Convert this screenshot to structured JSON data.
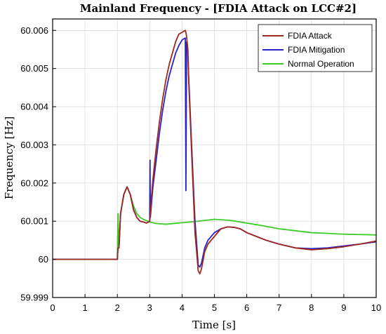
{
  "chart_data": {
    "type": "line",
    "title": "Mainland Frequency - [FDIA Attack on LCC#2]",
    "xlabel": "Time [s]",
    "ylabel": "Frequency [Hz]",
    "xlim": [
      0,
      10
    ],
    "ylim": [
      59.999,
      60.0063
    ],
    "x_ticks": [
      0,
      1,
      2,
      3,
      4,
      5,
      6,
      7,
      8,
      9,
      10
    ],
    "x_tick_labels": [
      "0",
      "1",
      "2",
      "3",
      "4",
      "5",
      "6",
      "7",
      "8",
      "9",
      "10"
    ],
    "y_ticks": [
      59.999,
      60.0,
      60.001,
      60.002,
      60.003,
      60.004,
      60.005,
      60.006
    ],
    "y_tick_labels": [
      "59.999",
      "60",
      "60.001",
      "60.002",
      "60.003",
      "60.004",
      "60.005",
      "60.006"
    ],
    "grid": true,
    "legend_position": "top-right",
    "series": [
      {
        "name": "FDIA Attack",
        "color": "#a0281e",
        "x": [
          0,
          2.0,
          2.02,
          2.05,
          2.1,
          2.2,
          2.3,
          2.4,
          2.5,
          2.6,
          2.7,
          2.8,
          2.9,
          3.0,
          3.02,
          3.05,
          3.1,
          3.2,
          3.3,
          3.4,
          3.5,
          3.6,
          3.7,
          3.8,
          3.9,
          4.0,
          4.1,
          4.13,
          4.15,
          4.17,
          4.2,
          4.3,
          4.4,
          4.5,
          4.55,
          4.6,
          4.7,
          4.8,
          5.0,
          5.2,
          5.4,
          5.6,
          5.8,
          6.0,
          6.3,
          6.6,
          7.0,
          7.5,
          8.0,
          8.5,
          9.0,
          9.5,
          10.0
        ],
        "y": [
          60.0,
          60.0,
          60.0003,
          60.0003,
          60.0012,
          60.0017,
          60.0019,
          60.0017,
          60.0013,
          60.0011,
          60.001,
          60.00098,
          60.00095,
          60.001,
          60.0012,
          60.0016,
          60.0021,
          60.0029,
          60.0036,
          60.0042,
          60.0047,
          60.0051,
          60.0054,
          60.0057,
          60.0059,
          60.00595,
          60.006,
          60.0059,
          60.00575,
          60.0056,
          60.0048,
          60.0027,
          60.0007,
          59.9997,
          59.99962,
          59.99975,
          60.0002,
          60.0004,
          60.0006,
          60.0008,
          60.00085,
          60.00084,
          60.0008,
          60.0007,
          60.0006,
          60.0005,
          60.0004,
          60.0003,
          60.00025,
          60.00028,
          60.00033,
          60.0004,
          60.00048
        ]
      },
      {
        "name": "FDIA Mitigation",
        "color": "#2a23c7",
        "x": [
          0,
          2.0,
          2.02,
          2.05,
          2.1,
          2.2,
          2.3,
          2.4,
          2.5,
          2.6,
          2.7,
          2.8,
          2.9,
          3.0,
          3.01,
          3.02,
          3.05,
          3.1,
          3.2,
          3.3,
          3.4,
          3.5,
          3.6,
          3.7,
          3.8,
          3.9,
          4.0,
          4.1,
          4.12,
          4.14,
          4.16,
          4.18,
          4.2,
          4.3,
          4.4,
          4.5,
          4.55,
          4.6,
          4.7,
          4.8,
          5.0,
          5.2,
          5.4,
          5.6,
          5.8,
          6.0,
          6.3,
          6.6,
          7.0,
          7.5,
          8.0,
          8.5,
          9.0,
          9.5,
          10.0
        ],
        "y": [
          60.0,
          60.0,
          60.0003,
          60.0003,
          60.0012,
          60.0017,
          60.0019,
          60.0017,
          60.0013,
          60.0011,
          60.001,
          60.00098,
          60.00095,
          60.001,
          60.0026,
          60.0011,
          60.0014,
          60.0019,
          60.0026,
          60.0033,
          60.0039,
          60.0044,
          60.0048,
          60.0051,
          60.0054,
          60.0056,
          60.00575,
          60.0058,
          60.0018,
          60.0057,
          60.0056,
          60.0055,
          60.0049,
          60.0029,
          60.001,
          59.99985,
          59.9998,
          59.9999,
          60.0003,
          60.0005,
          60.0007,
          60.0008,
          60.00085,
          60.00084,
          60.0008,
          60.0007,
          60.0006,
          60.0005,
          60.0004,
          60.0003,
          60.00028,
          60.0003,
          60.00035,
          60.0004,
          60.00046
        ]
      },
      {
        "name": "Normal Operation",
        "color": "#3ccc28",
        "x": [
          0,
          2.0,
          2.02,
          2.05,
          2.1,
          2.2,
          2.3,
          2.4,
          2.5,
          2.6,
          2.7,
          2.8,
          3.0,
          3.2,
          3.5,
          4.0,
          4.5,
          5.0,
          5.5,
          6.0,
          6.5,
          7.0,
          7.5,
          8.0,
          8.5,
          9.0,
          9.5,
          10.0
        ],
        "y": [
          60.0,
          60.0,
          60.0012,
          60.0003,
          60.0012,
          60.0017,
          60.0019,
          60.0017,
          60.0014,
          60.0012,
          60.0011,
          60.00105,
          60.00098,
          60.00094,
          60.00092,
          60.00096,
          60.001,
          60.00105,
          60.00102,
          60.00095,
          60.00088,
          60.0008,
          60.00075,
          60.0007,
          60.00068,
          60.00066,
          60.00065,
          60.00064
        ]
      }
    ]
  }
}
